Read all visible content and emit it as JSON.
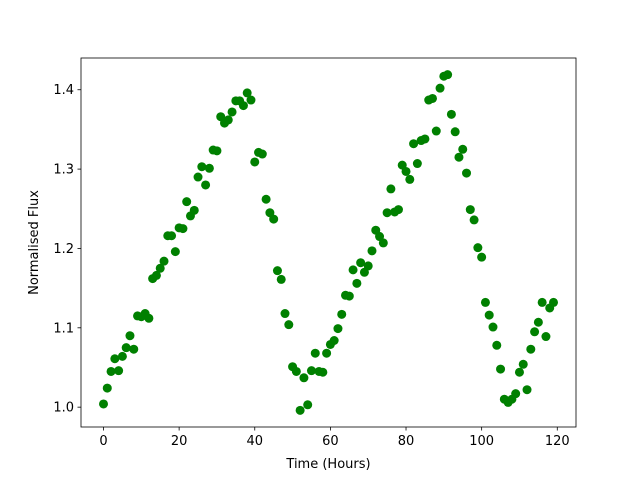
{
  "chart_data": {
    "type": "scatter",
    "xlabel": "Time (Hours)",
    "ylabel": "Normalised Flux",
    "color": "#008000",
    "x": [
      0,
      1,
      2,
      3,
      4,
      5,
      6,
      7,
      8,
      9,
      10,
      11,
      12,
      13,
      14,
      15,
      16,
      17,
      18,
      19,
      20,
      21,
      22,
      23,
      24,
      25,
      26,
      27,
      28,
      29,
      30,
      31,
      32,
      33,
      34,
      35,
      36,
      37,
      38,
      39,
      40,
      41,
      42,
      43,
      44,
      45,
      46,
      47,
      48,
      49,
      50,
      51,
      52,
      53,
      54,
      55,
      56,
      57,
      58,
      59,
      60,
      61,
      62,
      63,
      64,
      65,
      66,
      67,
      68,
      69,
      70,
      71,
      72,
      73,
      74,
      75,
      76,
      77,
      78,
      79,
      80,
      81,
      82,
      83,
      84,
      85,
      86,
      87,
      88,
      89,
      90,
      91,
      92,
      93,
      94,
      95,
      96,
      97,
      98,
      99,
      100,
      101,
      102,
      103,
      104,
      105,
      106,
      107,
      108,
      109,
      110,
      111,
      112,
      113,
      114,
      115,
      116,
      117,
      118,
      119
    ],
    "values": [
      1.004,
      1.024,
      1.045,
      1.061,
      1.046,
      1.064,
      1.075,
      1.09,
      1.073,
      1.115,
      1.114,
      1.118,
      1.112,
      1.162,
      1.166,
      1.175,
      1.184,
      1.216,
      1.216,
      1.196,
      1.226,
      1.225,
      1.259,
      1.241,
      1.248,
      1.29,
      1.303,
      1.28,
      1.301,
      1.324,
      1.323,
      1.366,
      1.358,
      1.362,
      1.372,
      1.386,
      1.386,
      1.38,
      1.396,
      1.387,
      1.309,
      1.321,
      1.319,
      1.262,
      1.245,
      1.237,
      1.172,
      1.161,
      1.118,
      1.104,
      1.051,
      1.045,
      0.996,
      1.037,
      1.003,
      1.046,
      1.068,
      1.045,
      1.044,
      1.068,
      1.079,
      1.084,
      1.099,
      1.117,
      1.141,
      1.14,
      1.173,
      1.156,
      1.182,
      1.17,
      1.178,
      1.197,
      1.223,
      1.215,
      1.207,
      1.245,
      1.275,
      1.246,
      1.249,
      1.305,
      1.297,
      1.287,
      1.332,
      1.307,
      1.336,
      1.338,
      1.387,
      1.389,
      1.348,
      1.402,
      1.417,
      1.419,
      1.369,
      1.347,
      1.315,
      1.325,
      1.295,
      1.249,
      1.236,
      1.201,
      1.189,
      1.132,
      1.116,
      1.101,
      1.078,
      1.048,
      1.01,
      1.006,
      1.01,
      1.017,
      1.044,
      1.054,
      1.022,
      1.073,
      1.095,
      1.107,
      1.132,
      1.089,
      1.125,
      1.132
    ],
    "xlim": [
      -5.95,
      124.95
    ],
    "ylim": [
      0.975,
      1.44
    ],
    "xticks": [
      0,
      20,
      40,
      60,
      80,
      100,
      120
    ],
    "yticks": [
      {
        "value": 1,
        "label": "1.0"
      },
      1.1,
      1.2,
      1.3,
      1.4
    ]
  }
}
